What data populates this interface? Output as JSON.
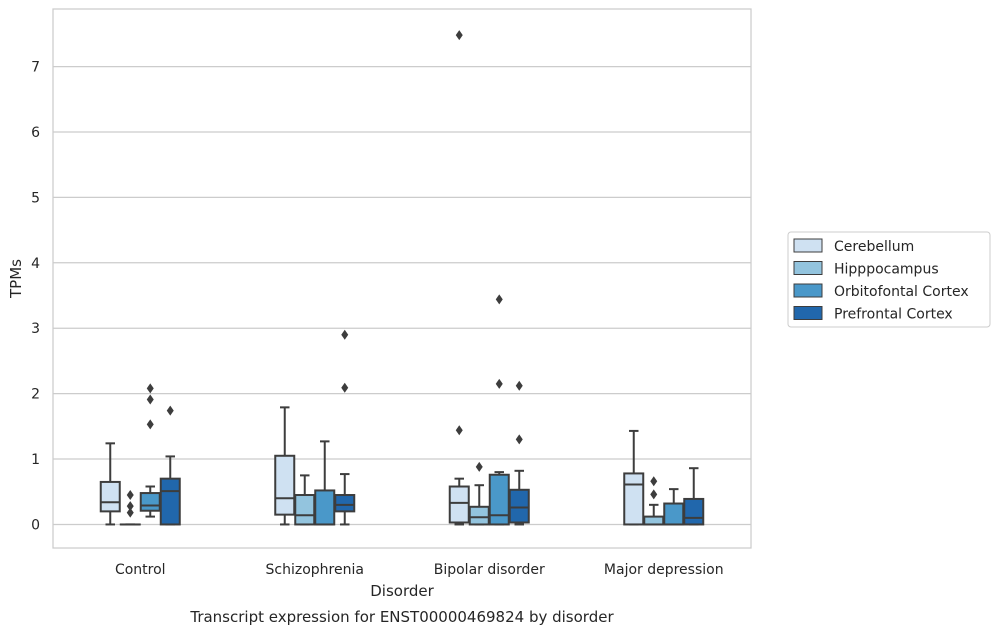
{
  "chart_data": {
    "type": "box",
    "title": "",
    "caption": "Transcript expression for ENST00000469824 by disorder",
    "xlabel": "Disorder",
    "ylabel": "TPMs",
    "ylim": [
      -0.36,
      7.88
    ],
    "yticks": [
      0,
      1,
      2,
      3,
      4,
      5,
      6,
      7
    ],
    "grid": true,
    "legend_position": "right",
    "categories": [
      "Control",
      "Schizophrenia",
      "Bipolar disorder",
      "Major depression"
    ],
    "series": [
      {
        "name": "Cerebellum",
        "color": "#cfe1f2",
        "boxes": [
          {
            "whislo": 0.0,
            "q1": 0.2,
            "med": 0.34,
            "q3": 0.65,
            "whishi": 1.24,
            "fliers": []
          },
          {
            "whislo": 0.0,
            "q1": 0.15,
            "med": 0.4,
            "q3": 1.05,
            "whishi": 1.79,
            "fliers": []
          },
          {
            "whislo": 0.0,
            "q1": 0.03,
            "med": 0.33,
            "q3": 0.58,
            "whishi": 0.7,
            "fliers": [
              1.44,
              7.48
            ]
          },
          {
            "whislo": 0.0,
            "q1": 0.0,
            "med": 0.61,
            "q3": 0.78,
            "whishi": 1.43,
            "fliers": []
          }
        ]
      },
      {
        "name": "Hipppocampus",
        "color": "#93c4de",
        "boxes": [
          {
            "whislo": 0.0,
            "q1": 0.0,
            "med": 0.0,
            "q3": 0.0,
            "whishi": 0.0,
            "fliers": [
              0.18,
              0.28,
              0.45
            ]
          },
          {
            "whislo": 0.0,
            "q1": 0.0,
            "med": 0.14,
            "q3": 0.45,
            "whishi": 0.75,
            "fliers": []
          },
          {
            "whislo": 0.0,
            "q1": 0.0,
            "med": 0.11,
            "q3": 0.27,
            "whishi": 0.6,
            "fliers": [
              0.88
            ]
          },
          {
            "whislo": 0.0,
            "q1": 0.0,
            "med": 0.0,
            "q3": 0.12,
            "whishi": 0.3,
            "fliers": [
              0.46,
              0.66
            ]
          }
        ]
      },
      {
        "name": "Orbitofontal Cortex",
        "color": "#4a98c9",
        "boxes": [
          {
            "whislo": 0.12,
            "q1": 0.21,
            "med": 0.29,
            "q3": 0.48,
            "whishi": 0.58,
            "fliers": [
              1.53,
              1.91,
              2.08
            ]
          },
          {
            "whislo": 0.0,
            "q1": 0.0,
            "med": 0.0,
            "q3": 0.52,
            "whishi": 1.27,
            "fliers": []
          },
          {
            "whislo": 0.0,
            "q1": 0.0,
            "med": 0.14,
            "q3": 0.76,
            "whishi": 0.8,
            "fliers": [
              2.15,
              3.44
            ]
          },
          {
            "whislo": 0.0,
            "q1": 0.0,
            "med": 0.0,
            "q3": 0.32,
            "whishi": 0.54,
            "fliers": []
          }
        ]
      },
      {
        "name": "Prefrontal Cortex",
        "color": "#2167ac",
        "boxes": [
          {
            "whislo": 0.0,
            "q1": 0.0,
            "med": 0.51,
            "q3": 0.7,
            "whishi": 1.04,
            "fliers": [
              1.74
            ]
          },
          {
            "whislo": 0.0,
            "q1": 0.2,
            "med": 0.3,
            "q3": 0.45,
            "whishi": 0.77,
            "fliers": [
              2.09,
              2.9
            ]
          },
          {
            "whislo": 0.0,
            "q1": 0.03,
            "med": 0.26,
            "q3": 0.53,
            "whishi": 0.82,
            "fliers": [
              1.3,
              2.12
            ]
          },
          {
            "whislo": 0.0,
            "q1": 0.0,
            "med": 0.1,
            "q3": 0.39,
            "whishi": 0.86,
            "fliers": []
          }
        ]
      }
    ]
  }
}
